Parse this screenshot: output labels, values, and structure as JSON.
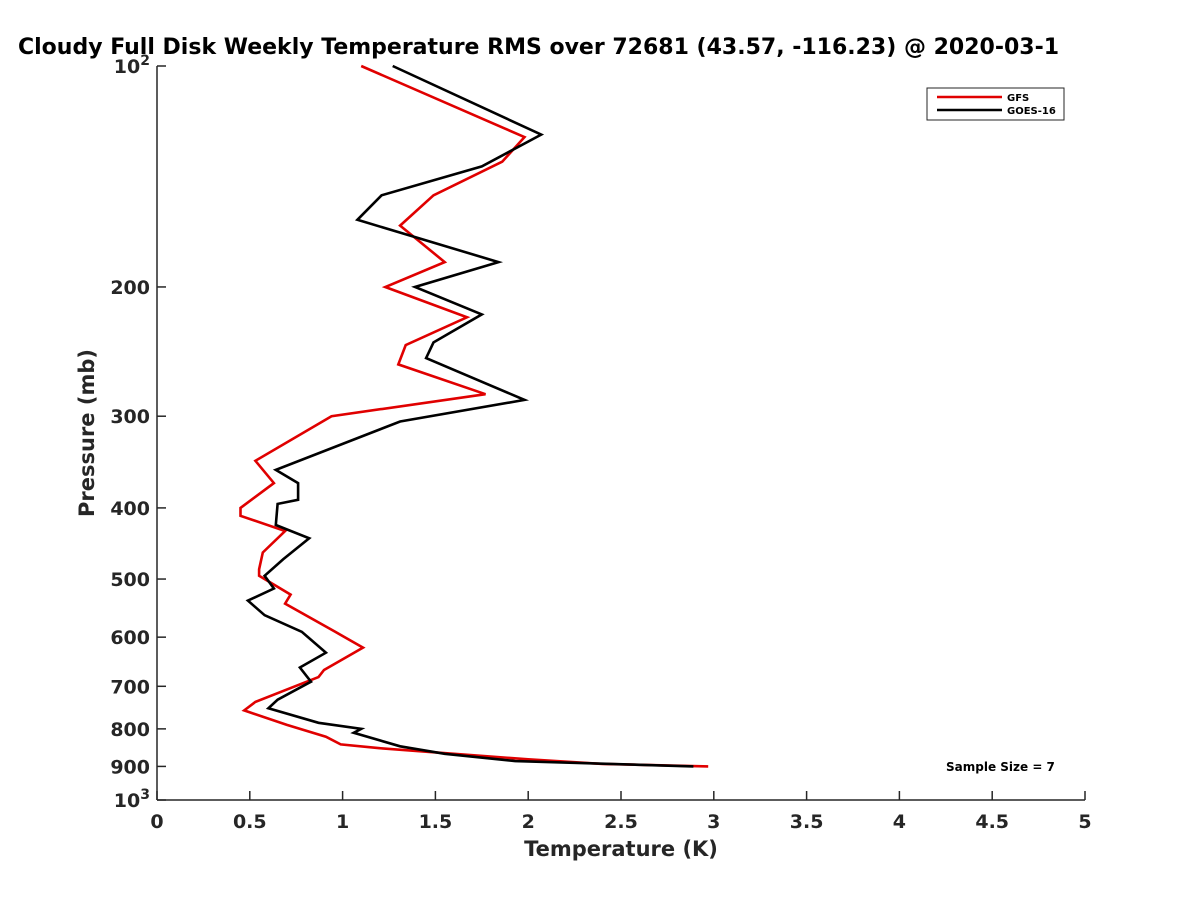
{
  "chart_data": {
    "type": "line",
    "title": "Cloudy Full Disk Weekly Temperature RMS over 72681 (43.57, -116.23) @ 2020-03-1",
    "xlabel": "Temperature (K)",
    "ylabel": "Pressure (mb)",
    "xlim": [
      0,
      5
    ],
    "ylim": [
      100,
      1000
    ],
    "y_scale": "log",
    "y_reversed": true,
    "grid": false,
    "legend_position": "top-right",
    "x_ticks": [
      "0",
      "0.5",
      "1",
      "1.5",
      "2",
      "2.5",
      "3",
      "3.5",
      "4",
      "4.5",
      "5"
    ],
    "y_ticks": [
      {
        "value": 100,
        "base": "10",
        "exp": "2"
      },
      {
        "value": 200,
        "label": "200"
      },
      {
        "value": 300,
        "label": "300"
      },
      {
        "value": 400,
        "label": "400"
      },
      {
        "value": 500,
        "label": "500"
      },
      {
        "value": 600,
        "label": "600"
      },
      {
        "value": 700,
        "label": "700"
      },
      {
        "value": 800,
        "label": "800"
      },
      {
        "value": 900,
        "label": "900"
      },
      {
        "value": 1000,
        "base": "10",
        "exp": "3"
      }
    ],
    "series": [
      {
        "name": "GFS",
        "color": "#e00000",
        "points": [
          [
            1.1,
            100
          ],
          [
            1.98,
            125
          ],
          [
            1.86,
            135
          ],
          [
            1.49,
            150
          ],
          [
            1.31,
            165
          ],
          [
            1.55,
            185
          ],
          [
            1.23,
            200
          ],
          [
            1.67,
            220
          ],
          [
            1.34,
            240
          ],
          [
            1.3,
            255
          ],
          [
            1.77,
            280
          ],
          [
            0.94,
            300
          ],
          [
            0.53,
            345
          ],
          [
            0.63,
            370
          ],
          [
            0.45,
            400
          ],
          [
            0.45,
            410
          ],
          [
            0.69,
            430
          ],
          [
            0.57,
            460
          ],
          [
            0.55,
            485
          ],
          [
            0.55,
            495
          ],
          [
            0.72,
            525
          ],
          [
            0.69,
            540
          ],
          [
            0.96,
            590
          ],
          [
            1.11,
            620
          ],
          [
            0.9,
            665
          ],
          [
            0.87,
            680
          ],
          [
            0.53,
            735
          ],
          [
            0.47,
            755
          ],
          [
            0.7,
            790
          ],
          [
            0.91,
            820
          ],
          [
            0.99,
            840
          ],
          [
            1.2,
            850
          ],
          [
            1.6,
            865
          ],
          [
            2.0,
            880
          ],
          [
            2.4,
            893
          ],
          [
            2.97,
            900
          ]
        ]
      },
      {
        "name": "GOES-16",
        "color": "#000000",
        "points": [
          [
            1.27,
            100
          ],
          [
            2.07,
            124
          ],
          [
            1.75,
            137
          ],
          [
            1.21,
            150
          ],
          [
            1.08,
            162
          ],
          [
            1.84,
            185
          ],
          [
            1.39,
            200
          ],
          [
            1.75,
            218
          ],
          [
            1.49,
            238
          ],
          [
            1.45,
            250
          ],
          [
            1.98,
            285
          ],
          [
            1.31,
            305
          ],
          [
            0.64,
            355
          ],
          [
            0.76,
            370
          ],
          [
            0.76,
            390
          ],
          [
            0.65,
            395
          ],
          [
            0.64,
            422
          ],
          [
            0.82,
            440
          ],
          [
            0.68,
            470
          ],
          [
            0.58,
            495
          ],
          [
            0.63,
            515
          ],
          [
            0.49,
            535
          ],
          [
            0.58,
            560
          ],
          [
            0.78,
            590
          ],
          [
            0.91,
            630
          ],
          [
            0.77,
            660
          ],
          [
            0.83,
            690
          ],
          [
            0.65,
            730
          ],
          [
            0.6,
            750
          ],
          [
            0.87,
            785
          ],
          [
            1.1,
            800
          ],
          [
            1.06,
            810
          ],
          [
            1.31,
            845
          ],
          [
            1.55,
            865
          ],
          [
            1.93,
            885
          ],
          [
            2.89,
            900
          ]
        ]
      }
    ],
    "annotations": [
      "Sample Size = 7"
    ]
  }
}
